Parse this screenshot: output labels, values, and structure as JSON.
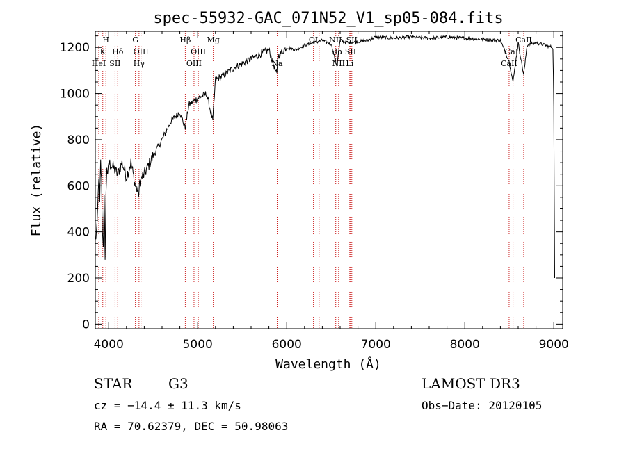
{
  "chart_data": {
    "type": "line",
    "title": "spec-55932-GAC_071N52_V1_sp05-084.fits",
    "xlabel": "Wavelength (Å)",
    "ylabel": "Flux (relative)",
    "xlim": [
      3850,
      9100
    ],
    "ylim": [
      -20,
      1270
    ],
    "xticks": [
      4000,
      5000,
      6000,
      7000,
      8000,
      9000
    ],
    "yticks": [
      0,
      200,
      400,
      600,
      800,
      1000,
      1200
    ],
    "series": [
      {
        "name": "flux",
        "x": [
          3850,
          3870,
          3890,
          3900,
          3910,
          3920,
          3930,
          3940,
          3950,
          3960,
          3970,
          3980,
          3990,
          4000,
          4050,
          4100,
          4150,
          4200,
          4250,
          4300,
          4340,
          4350,
          4400,
          4500,
          4600,
          4700,
          4800,
          4860,
          4900,
          5000,
          5100,
          5170,
          5200,
          5300,
          5400,
          5500,
          5600,
          5700,
          5800,
          5890,
          5900,
          6000,
          6100,
          6200,
          6300,
          6400,
          6500,
          6563,
          6600,
          6700,
          6800,
          6900,
          7000,
          7200,
          7400,
          7600,
          7800,
          8000,
          8200,
          8400,
          8498,
          8542,
          8600,
          8662,
          8700,
          8800,
          8900,
          8990,
          9000,
          9010
        ],
        "y": [
          360,
          420,
          650,
          520,
          700,
          620,
          400,
          350,
          540,
          300,
          560,
          690,
          630,
          700,
          680,
          650,
          700,
          640,
          700,
          600,
          560,
          620,
          650,
          730,
          800,
          880,
          920,
          850,
          950,
          980,
          1000,
          880,
          1060,
          1080,
          1110,
          1130,
          1150,
          1170,
          1190,
          1080,
          1160,
          1200,
          1190,
          1210,
          1220,
          1230,
          1215,
          1120,
          1230,
          1220,
          1225,
          1230,
          1245,
          1240,
          1245,
          1240,
          1245,
          1240,
          1235,
          1230,
          1140,
          1050,
          1220,
          1080,
          1210,
          1220,
          1210,
          1200,
          950,
          200
        ]
      }
    ],
    "lines": [
      {
        "wl": 3889,
        "label": "HeI",
        "row": 2
      },
      {
        "wl": 3934,
        "label": "K",
        "row": 1
      },
      {
        "wl": 3969,
        "label": "H",
        "row": 0
      },
      {
        "wl": 4072,
        "label": "SII",
        "row": 2
      },
      {
        "wl": 4102,
        "label": "Hδ",
        "row": 1
      },
      {
        "wl": 4300,
        "label": "G",
        "row": 0
      },
      {
        "wl": 4341,
        "label": "Hγ",
        "row": 2
      },
      {
        "wl": 4363,
        "label": "OIII",
        "row": 1
      },
      {
        "wl": 4861,
        "label": "Hβ",
        "row": 0
      },
      {
        "wl": 4959,
        "label": "OIII",
        "row": 2
      },
      {
        "wl": 5007,
        "label": "OIII",
        "row": 1
      },
      {
        "wl": 5175,
        "label": "Mg",
        "row": 0
      },
      {
        "wl": 5893,
        "label": "Na",
        "row": 2
      },
      {
        "wl": 6300,
        "label": "OI",
        "row": 0
      },
      {
        "wl": 6364,
        "label": "",
        "row": 0
      },
      {
        "wl": 6548,
        "label": "NII",
        "row": 0
      },
      {
        "wl": 6563,
        "label": "Hα",
        "row": 1
      },
      {
        "wl": 6583,
        "label": "NII",
        "row": 2
      },
      {
        "wl": 6717,
        "label": "SII",
        "row": 1
      },
      {
        "wl": 6731,
        "label": "SII",
        "row": 0
      },
      {
        "wl": 6708,
        "label": "Li",
        "row": 2
      },
      {
        "wl": 8498,
        "label": "CaII",
        "row": 2
      },
      {
        "wl": 8542,
        "label": "CaII",
        "row": 1
      },
      {
        "wl": 8662,
        "label": "CaII",
        "row": 0
      }
    ]
  },
  "info": {
    "class": "STAR",
    "subclass": "G3",
    "survey": "LAMOST DR3",
    "cz": "cz = −14.4 ± 11.3 km/s",
    "obsdate": "Obs−Date: 20120105",
    "radec": "RA =  70.62379, DEC =  50.98063"
  },
  "colors": {
    "spectrum": "#000000",
    "lines": "#cc2222",
    "axes": "#000000"
  }
}
